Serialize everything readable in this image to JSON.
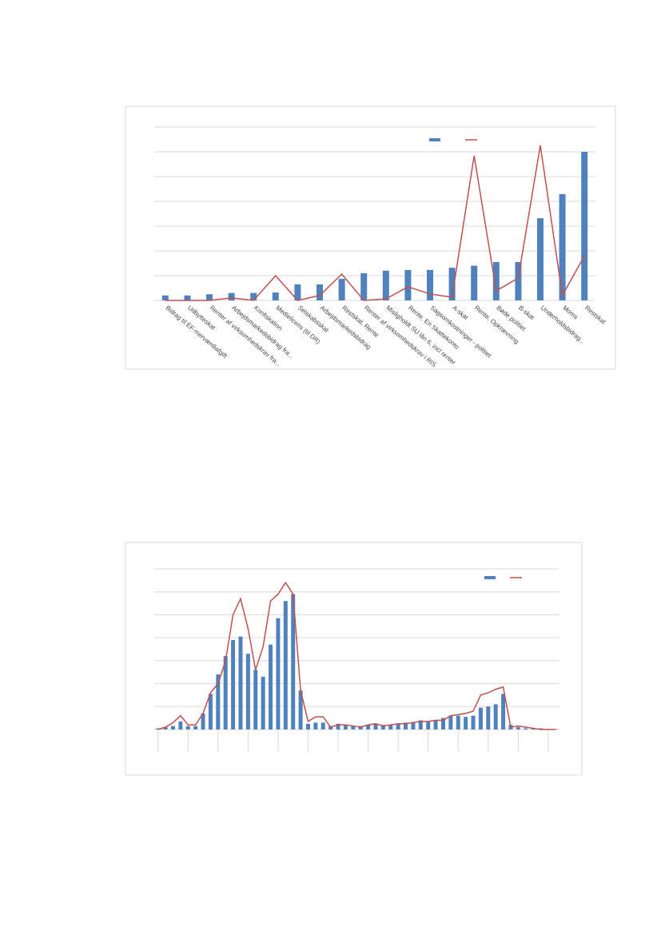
{
  "charts": [
    {
      "chart_data": {
        "type": "bar-line",
        "categories": [
          "Bidrag til EF-merværdiafgift",
          "Udbytteskat",
          "Renter af virksomhedskrav fra...",
          "Arbejdsmarkedsbidrag fra...",
          "Konfiskation",
          "Medielicens (til DR)",
          "Selskabsskat",
          "Arbejdsmarkedsbidrag",
          "Restskat, Rente",
          "Renter af virksomhedskrav i RIS",
          "Misligholdt SU lån 6, incl renter",
          "Rente, En Skattekonto",
          "Sagsomkostninger - politiet",
          "A-skat",
          "Rente, Opkrævning",
          "Bøde politiet",
          "B-skat",
          "Underholdsbidrag...",
          "Moms",
          "Restskat"
        ],
        "series": [
          {
            "color": "#4f81bd",
            "kind": "bar",
            "values": [
              0.2,
              0.2,
              0.25,
              0.3,
              0.3,
              0.32,
              0.65,
              0.65,
              0.87,
              1.1,
              1.2,
              1.23,
              1.23,
              1.32,
              1.4,
              1.55,
              1.55,
              3.32,
              4.29,
              6.0
            ]
          },
          {
            "color": "#c0504d",
            "kind": "line",
            "values": [
              0,
              0,
              0,
              0.1,
              0,
              1.0,
              0,
              0.2,
              1.06,
              0,
              0.06,
              0.55,
              0.26,
              0.13,
              5.84,
              0.39,
              0.9,
              6.26,
              0.2,
              1.8
            ]
          }
        ],
        "ylim": [
          0,
          7
        ],
        "yticks": [
          0,
          1,
          2,
          3,
          4,
          5,
          6,
          7
        ],
        "grid": true,
        "tick_labels": false,
        "legend": "top-right"
      }
    },
    {
      "chart_data": {
        "type": "bar-line",
        "series": [
          {
            "color": "#4f81bd",
            "kind": "bar",
            "values": [
              0.05,
              0.1,
              0.15,
              0.35,
              0.15,
              0.15,
              0.7,
              1.55,
              2.4,
              3.2,
              3.9,
              4.05,
              3.3,
              2.6,
              2.3,
              3.7,
              4.85,
              5.6,
              5.9,
              1.7,
              0.25,
              0.3,
              0.3,
              0.15,
              0.25,
              0.2,
              0.15,
              0.15,
              0.2,
              0.25,
              0.2,
              0.2,
              0.25,
              0.3,
              0.3,
              0.4,
              0.35,
              0.4,
              0.5,
              0.6,
              0.6,
              0.55,
              0.6,
              0.95,
              1.0,
              1.1,
              1.55,
              0.2,
              0.1,
              0.05,
              0.05,
              0.05,
              0.02,
              0.02
            ]
          },
          {
            "color": "#c0504d",
            "kind": "line",
            "values": [
              0,
              0.1,
              0.3,
              0.6,
              0.2,
              0.2,
              0.7,
              1.6,
              2.0,
              3.0,
              5.0,
              5.7,
              4.4,
              2.6,
              3.6,
              5.6,
              5.9,
              6.4,
              5.9,
              1.7,
              0.35,
              0.55,
              0.55,
              0.1,
              0.2,
              0.2,
              0.15,
              0.1,
              0.2,
              0.25,
              0.15,
              0.2,
              0.25,
              0.25,
              0.3,
              0.35,
              0.35,
              0.4,
              0.4,
              0.6,
              0.65,
              0.7,
              0.8,
              1.5,
              1.6,
              1.75,
              1.85,
              0.1,
              0.15,
              0.1,
              0.05,
              0,
              0,
              0
            ]
          }
        ],
        "ylim": [
          0,
          7
        ],
        "yticks": [
          0,
          1,
          2,
          3,
          4,
          5,
          6,
          7
        ],
        "grid": true,
        "tick_labels": false,
        "legend": "top-right"
      }
    }
  ]
}
